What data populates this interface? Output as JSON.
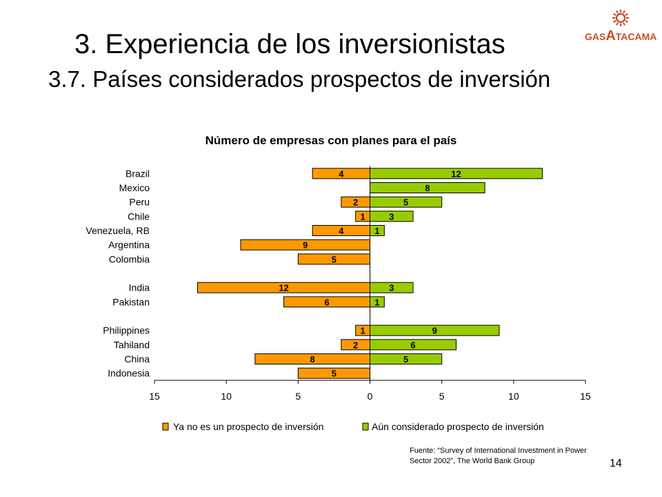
{
  "slide": {
    "title": "3. Experiencia de los inversionistas",
    "subtitle": "3.7. Países considerados prospectos de inversión",
    "logo_text_left": "GAS",
    "logo_text_big": "A",
    "logo_text_right": "TACAMA",
    "source_line1": "Fuente: “Survey of International Investment in Power",
    "source_line2": "Sector 2002”, The World Bank Group",
    "page_number": "14"
  },
  "colors": {
    "no_prospect": "#FF9900",
    "prospect": "#99CC00",
    "logo": "#C8502A"
  },
  "chart_data": {
    "type": "bar",
    "orientation": "horizontal-diverging",
    "title": "Número de empresas con planes para el país",
    "categories": [
      "Brazil",
      "Mexico",
      "Peru",
      "Chile",
      "Venezuela, RB",
      "Argentina",
      "Colombia",
      "",
      "India",
      "Pakistan",
      "",
      "Philippines",
      "Tahiland",
      "China",
      "Indonesia"
    ],
    "series": [
      {
        "name": "Ya no es un prospecto de inversión",
        "direction": "left",
        "values": [
          4,
          null,
          2,
          1,
          4,
          9,
          5,
          null,
          12,
          6,
          null,
          1,
          2,
          8,
          5
        ]
      },
      {
        "name": "Aún considerado prospecto de inversión",
        "direction": "right",
        "values": [
          12,
          8,
          5,
          3,
          1,
          null,
          null,
          null,
          3,
          1,
          null,
          9,
          6,
          5,
          null
        ]
      }
    ],
    "xlim": [
      -15,
      15
    ],
    "xticks": [
      -15,
      -10,
      -5,
      0,
      5,
      10,
      15
    ],
    "xtick_labels": [
      "15",
      "10",
      "5",
      "0",
      "5",
      "10",
      "15"
    ],
    "legend_position": "bottom",
    "grid": false
  }
}
